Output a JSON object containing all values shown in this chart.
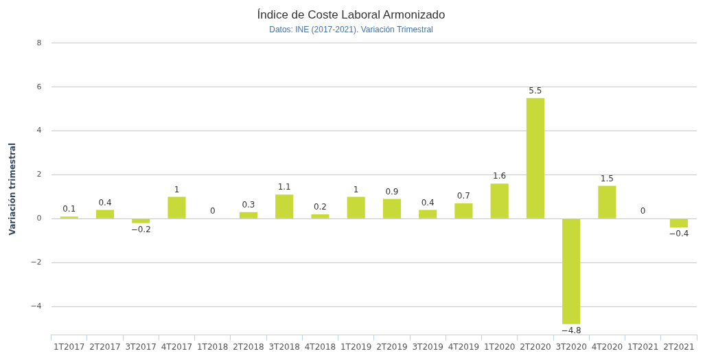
{
  "chart_data": {
    "type": "bar",
    "title": "Índice de Coste Laboral Armonizado",
    "subtitle": "Datos: INE (2017-2021). Variación Trimestral",
    "ylabel": "Variación trimestral",
    "categories": [
      "1T2017",
      "2T2017",
      "3T2017",
      "4T2017",
      "1T2018",
      "2T2018",
      "3T2018",
      "4T2018",
      "1T2019",
      "2T2019",
      "3T2019",
      "4T2019",
      "1T2020",
      "2T2020",
      "3T2020",
      "4T2020",
      "1T2021",
      "2T2021"
    ],
    "values": [
      0.1,
      0.4,
      -0.2,
      1,
      0,
      0.3,
      1.1,
      0.2,
      1,
      0.9,
      0.4,
      0.7,
      1.6,
      5.5,
      -4.8,
      1.5,
      0,
      -0.4
    ],
    "color": "#c8d93a",
    "ylim": [
      -5.3,
      8
    ],
    "yticks": [
      -4,
      -2,
      0,
      2,
      4,
      6,
      8
    ],
    "grid": "y",
    "data_labels": true,
    "legend": false
  }
}
